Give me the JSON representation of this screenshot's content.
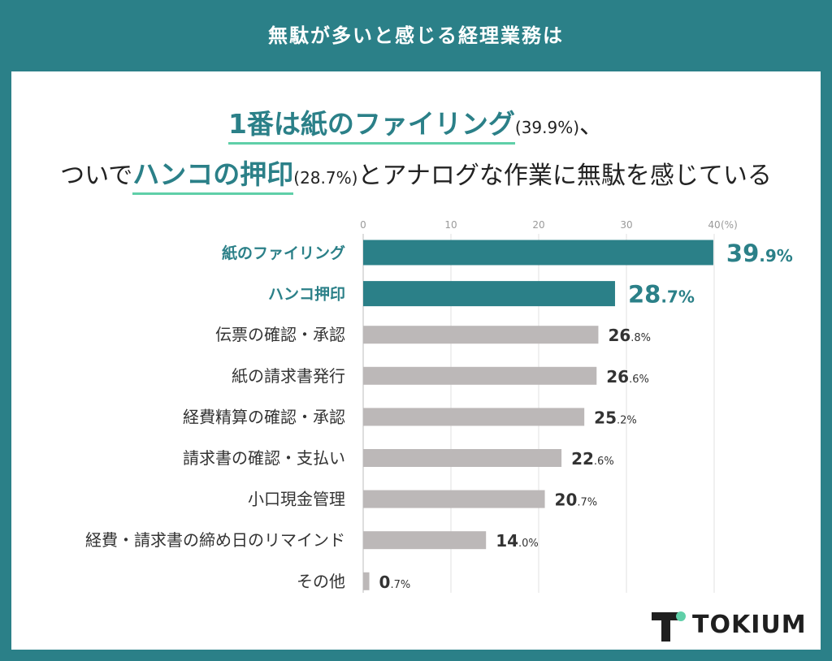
{
  "header": {
    "title": "無駄が多いと感じる経理業務は"
  },
  "headline": {
    "line1_highlight": "1番は紙のファイリング",
    "line1_pct": "(39.9%)",
    "line1_tail": "、",
    "line2_prefix": "ついで",
    "line2_highlight": "ハンコの押印",
    "line2_pct": "(28.7%)",
    "line2_tail": "とアナログな作業に無駄を感じている"
  },
  "chart_data": {
    "type": "bar",
    "orientation": "horizontal",
    "categories": [
      "紙のファイリング",
      "ハンコ押印",
      "伝票の確認・承認",
      "紙の請求書発行",
      "経費精算の確認・承認",
      "請求書の確認・支払い",
      "小口現金管理",
      "経費・請求書の締め日のリマインド",
      "その他"
    ],
    "values": [
      39.9,
      28.7,
      26.8,
      26.6,
      25.2,
      22.6,
      20.7,
      14.0,
      0.7
    ],
    "value_labels": [
      {
        "int": "39",
        "dec": ".9%"
      },
      {
        "int": "28",
        "dec": ".7%"
      },
      {
        "int": "26",
        "dec": ".8%"
      },
      {
        "int": "26",
        "dec": ".6%"
      },
      {
        "int": "25",
        "dec": ".2%"
      },
      {
        "int": "22",
        "dec": ".6%"
      },
      {
        "int": "20",
        "dec": ".7%"
      },
      {
        "int": "14",
        "dec": ".0%"
      },
      {
        "int": "0",
        "dec": ".7%"
      }
    ],
    "highlighted": [
      true,
      true,
      false,
      false,
      false,
      false,
      false,
      false,
      false
    ],
    "xticks": [
      "0",
      "10",
      "20",
      "30",
      "40"
    ],
    "xunit": "(%)",
    "xlim": [
      0,
      40
    ],
    "grid": true,
    "colors": {
      "highlight": "#2b8088",
      "normal": "#bcb8b8",
      "grid": "#e2e2e2"
    }
  },
  "logo": {
    "text": "TOKIUM",
    "mark_dark": "#1f1f1f",
    "mark_accent": "#5fcfa8"
  }
}
